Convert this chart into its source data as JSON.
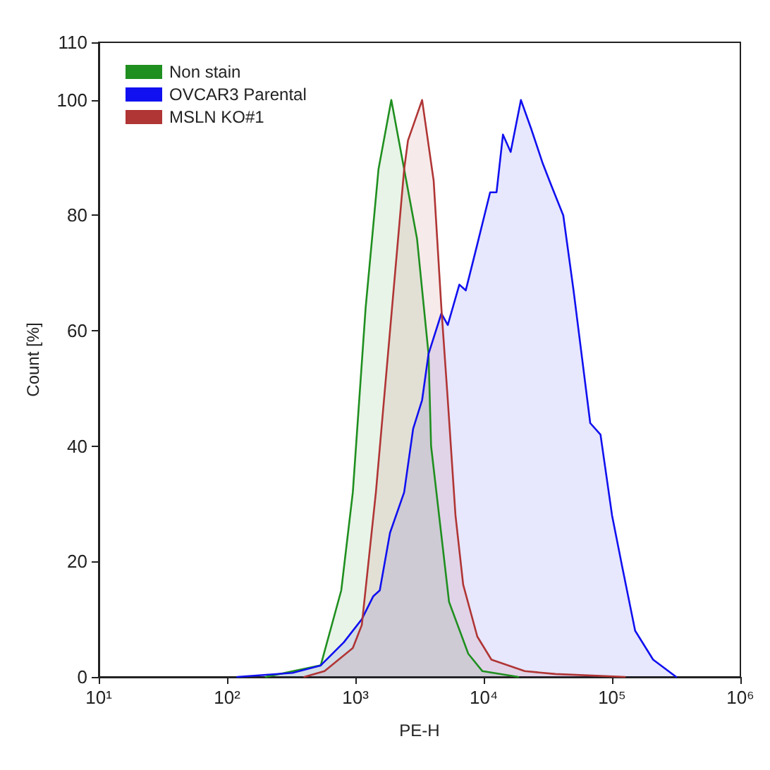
{
  "chart_data": {
    "type": "area",
    "xlabel": "PE-H",
    "ylabel": "Count [%]",
    "log": "x",
    "grid": false,
    "legend": "top left",
    "marker": "none",
    "line_style": "solid",
    "xlim": [
      10,
      1000000
    ],
    "xticks": [
      {
        "value": 10,
        "label": "10¹"
      },
      {
        "value": 100,
        "label": "10²"
      },
      {
        "value": 1000,
        "label": "10³"
      },
      {
        "value": 10000,
        "label": "10⁴"
      },
      {
        "value": 100000,
        "label": "10⁵"
      },
      {
        "value": 1000000,
        "label": "10⁶"
      }
    ],
    "ylim": [
      0,
      110
    ],
    "yticks": [
      0,
      20,
      40,
      60,
      80,
      100,
      110
    ],
    "series": [
      {
        "name": "Non stain",
        "color": "#1f8f1f",
        "x": [
          200,
          537,
          776,
          955,
          1202,
          1514,
          1905,
          2399,
          3020,
          3715,
          3890,
          5370,
          7586,
          9772,
          18620
        ],
        "values": [
          0,
          2,
          15,
          32,
          64,
          88,
          100,
          88,
          76,
          56,
          40,
          13,
          4,
          1,
          0
        ]
      },
      {
        "name": "OVCAR3 Parental",
        "color": "#1010f0",
        "x": [
          120,
          324,
          537,
          813,
          1122,
          1380,
          1549,
          1862,
          2399,
          2818,
          3311,
          3715,
          4677,
          5248,
          6457,
          7244,
          8913,
          11220,
          12589,
          14125,
          16218,
          19498,
          23442,
          28840,
          33884,
          41687,
          50119,
          67608,
          81283,
          100000,
          120226,
          151356,
          208930,
          316228
        ],
        "values": [
          0,
          0.7,
          2,
          6,
          10,
          14,
          15,
          25,
          32,
          43,
          48,
          56,
          63,
          61,
          68,
          67,
          75,
          84,
          84,
          94,
          91,
          100,
          95,
          89,
          85,
          80,
          67,
          44,
          42,
          28,
          19,
          8,
          3,
          0
        ]
      },
      {
        "name": "MSLN KO#1",
        "color": "#b03535",
        "x": [
          400,
          575,
          955,
          1122,
          1445,
          1862,
          2399,
          2570,
          3311,
          4074,
          4677,
          5248,
          6026,
          6918,
          8913,
          11482,
          20893,
          36308,
          125893
        ],
        "values": [
          0,
          1,
          5,
          9,
          32,
          60,
          88,
          93,
          100,
          86,
          64,
          48,
          28,
          16,
          7,
          3,
          1,
          0.5,
          0
        ]
      }
    ]
  }
}
